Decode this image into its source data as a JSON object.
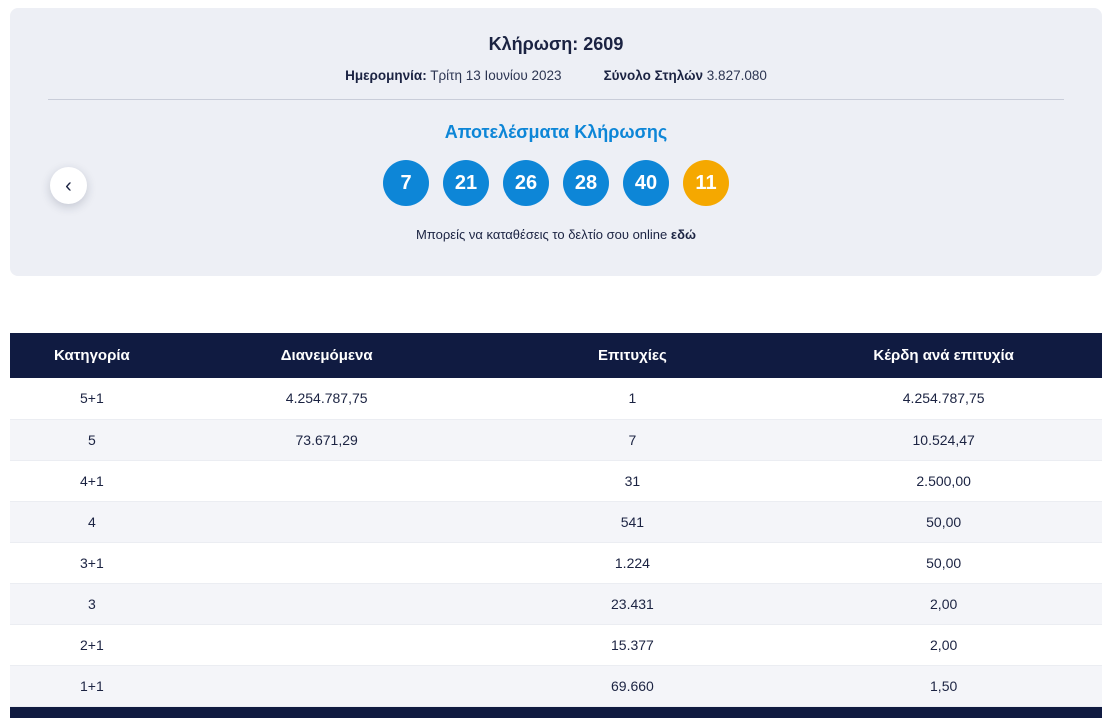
{
  "draw": {
    "title": "Κλήρωση: 2609",
    "date_label": "Ημερομηνία:",
    "date_value": "Τρίτη 13 Ιουνίου 2023",
    "columns_label": "Σύνολο Στηλών",
    "columns_value": "3.827.080",
    "results_title": "Αποτελέσματα Κλήρωσης",
    "numbers": [
      "7",
      "21",
      "26",
      "28",
      "40"
    ],
    "joker": "11",
    "cta_text": "Μπορείς να καταθέσεις το δελτίο σου online",
    "cta_link": "εδώ"
  },
  "carousel": {
    "prev_icon": "‹"
  },
  "table": {
    "headers": [
      "Κατηγορία",
      "Διανεμόμενα",
      "Επιτυχίες",
      "Κέρδη ανά επιτυχία"
    ],
    "rows": [
      {
        "category": "5+1",
        "distributed": "4.254.787,75",
        "winners": "1",
        "prize": "4.254.787,75"
      },
      {
        "category": "5",
        "distributed": "73.671,29",
        "winners": "7",
        "prize": "10.524,47"
      },
      {
        "category": "4+1",
        "distributed": "",
        "winners": "31",
        "prize": "2.500,00"
      },
      {
        "category": "4",
        "distributed": "",
        "winners": "541",
        "prize": "50,00"
      },
      {
        "category": "3+1",
        "distributed": "",
        "winners": "1.224",
        "prize": "50,00"
      },
      {
        "category": "3",
        "distributed": "",
        "winners": "23.431",
        "prize": "2,00"
      },
      {
        "category": "2+1",
        "distributed": "",
        "winners": "15.377",
        "prize": "2,00"
      },
      {
        "category": "1+1",
        "distributed": "",
        "winners": "69.660",
        "prize": "1,50"
      }
    ]
  },
  "colors": {
    "ball_blue": "#0d86d7",
    "ball_orange": "#f5a800",
    "header_navy": "#101b41",
    "accent_blue": "#0d86d7",
    "card_background": "#edeff5"
  }
}
